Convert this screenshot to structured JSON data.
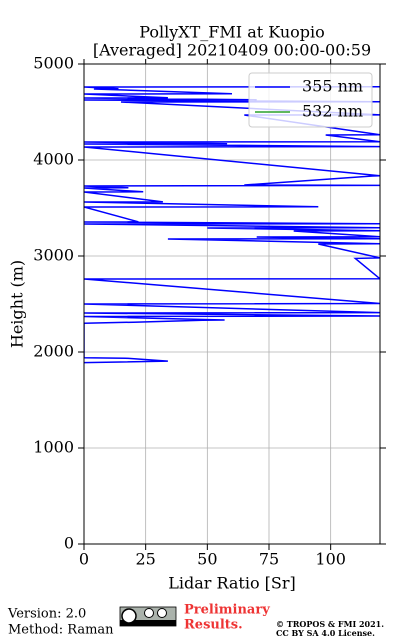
{
  "chart_data": {
    "type": "line",
    "orientation": "vertical-profile",
    "title": "PollyXT_FMI at Kuopio",
    "subtitle": "[Averaged] 20210409 00:00-00:59",
    "xlabel": "Lidar Ratio [Sr]",
    "ylabel": "Height (m)",
    "xlim": [
      0,
      120
    ],
    "xticks": [
      0,
      25,
      50,
      75,
      100
    ],
    "ylim": [
      0,
      5000
    ],
    "yticks": [
      0,
      1000,
      2000,
      3000,
      4000,
      5000
    ],
    "grid": true,
    "legend": "upper right",
    "heights": [
      1890,
      1905,
      1935,
      1940,
      2300,
      2310,
      2330,
      2333,
      2370,
      2375,
      2406,
      2410,
      2500,
      2505,
      2760,
      2762,
      2975,
      2980,
      3125,
      3128,
      3177,
      3180,
      3198,
      3200,
      3260,
      3262,
      3292,
      3295,
      3333,
      3336,
      3354,
      3356,
      3510,
      3512,
      3562,
      3564,
      3667,
      3669,
      3708,
      3710,
      3729,
      3735,
      3740,
      3833,
      3835,
      4135,
      4140,
      4167,
      4170,
      4187,
      4190,
      4260,
      4262,
      4469,
      4470,
      4604,
      4606,
      4625,
      4627,
      4646,
      4648,
      4687,
      4690,
      4740,
      4742,
      4760,
      4762
    ],
    "series": [
      {
        "name": "355 nm",
        "color": "#0000ff",
        "values": [
          0,
          34,
          17,
          0,
          0,
          20,
          48,
          57,
          0,
          120,
          0,
          120,
          0,
          120,
          0,
          120,
          110,
          120,
          95,
          120,
          34,
          120,
          70,
          120,
          85,
          120,
          50,
          120,
          0,
          120,
          0,
          22,
          0,
          95,
          0,
          32,
          0,
          24,
          0,
          18,
          0,
          120,
          65,
          117,
          120,
          0,
          120,
          0,
          58,
          0,
          120,
          98,
          120,
          65,
          120,
          15,
          120,
          0,
          70,
          0,
          34,
          0,
          60,
          4,
          14,
          0,
          120
        ]
      },
      {
        "name": "532 nm",
        "color": "#2ca02c"
      }
    ]
  },
  "footer": {
    "version": "Version: 2.0",
    "method": "Method: Raman",
    "status_line1": "Preliminary",
    "status_line2": "Results.",
    "copyright": "© TROPOS & FMI 2021.",
    "license": "CC BY SA 4.0 License."
  }
}
